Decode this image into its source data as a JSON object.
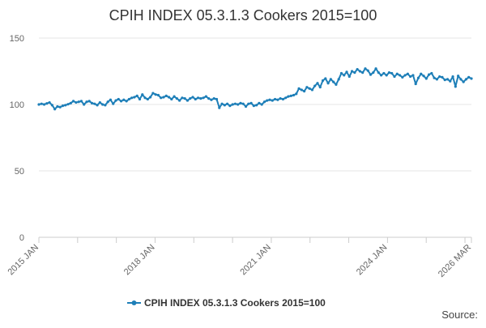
{
  "chart_data": {
    "type": "line",
    "title": "CPIH INDEX 05.3.1.3 Cookers 2015=100",
    "xlabel": "",
    "ylabel": "",
    "ylim": [
      0,
      150
    ],
    "yticks": [
      "0",
      "50",
      "100",
      "150"
    ],
    "xticks": [
      "2015 JAN",
      "2018 JAN",
      "2021 JAN",
      "2024 JAN",
      "2026 MAR"
    ],
    "x_start": "2015 JAN",
    "x_end": "2026 MAR",
    "series": [
      {
        "name": "CPIH INDEX 05.3.1.3 Cookers 2015=100",
        "color": "#1e7fb8",
        "values": [
          100.0,
          100.5,
          100.0,
          100.8,
          101.5,
          99.5,
          96.5,
          98.5,
          98.0,
          99.0,
          99.5,
          100.2,
          101.0,
          102.5,
          101.5,
          102.0,
          102.5,
          100.0,
          102.0,
          102.5,
          101.0,
          100.5,
          99.5,
          101.5,
          100.0,
          99.5,
          102.0,
          103.5,
          100.5,
          103.0,
          104.0,
          102.5,
          103.5,
          102.5,
          104.0,
          105.0,
          105.5,
          106.5,
          104.0,
          107.5,
          105.0,
          104.0,
          105.5,
          108.5,
          107.5,
          107.0,
          105.0,
          105.5,
          106.5,
          105.5,
          104.0,
          106.0,
          104.5,
          103.0,
          105.0,
          104.5,
          103.0,
          104.5,
          105.5,
          104.0,
          105.0,
          104.5,
          105.0,
          106.0,
          104.5,
          103.5,
          104.5,
          104.0,
          97.5,
          100.5,
          99.5,
          100.5,
          99.0,
          100.0,
          100.5,
          100.0,
          101.0,
          100.5,
          98.5,
          100.5,
          101.0,
          99.0,
          99.5,
          101.0,
          100.0,
          102.0,
          103.0,
          103.5,
          103.0,
          104.0,
          103.5,
          104.5,
          104.0,
          105.0,
          106.0,
          106.5,
          107.0,
          108.0,
          112.0,
          111.0,
          110.0,
          113.0,
          112.0,
          111.0,
          114.0,
          116.0,
          113.0,
          118.0,
          119.5,
          116.0,
          119.0,
          117.0,
          115.0,
          119.0,
          123.5,
          122.0,
          124.5,
          121.0,
          125.0,
          124.0,
          126.5,
          125.0,
          124.0,
          127.0,
          125.5,
          122.5,
          124.0,
          127.0,
          124.0,
          122.0,
          123.5,
          122.0,
          124.0,
          123.5,
          121.0,
          123.0,
          122.0,
          120.5,
          122.0,
          123.0,
          121.0,
          122.0,
          115.5,
          120.0,
          123.0,
          121.5,
          119.5,
          122.5,
          123.5,
          120.0,
          119.0,
          121.0,
          120.5,
          118.5,
          119.0,
          117.5,
          121.0,
          113.5,
          121.5,
          119.0,
          117.0,
          119.0,
          120.5,
          119.5
        ]
      }
    ],
    "legend_position": "bottom-center",
    "source_label": "Source:"
  }
}
